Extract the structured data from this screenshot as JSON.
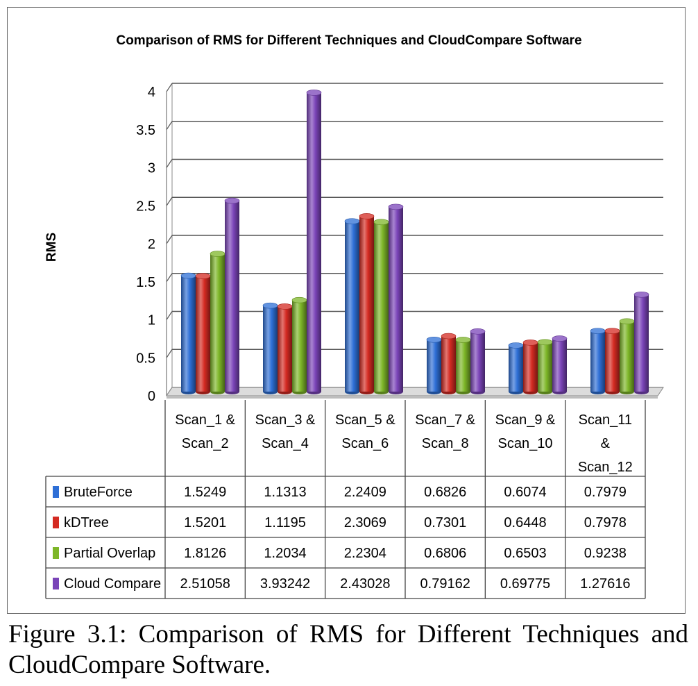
{
  "chart_data": {
    "type": "bar",
    "title": "Comparison of RMS for Different Techniques and CloudCompare Software",
    "xlabel": "",
    "ylabel": "RMS",
    "ylim": [
      0,
      4
    ],
    "yticks": [
      "0",
      "0.5",
      "1",
      "1.5",
      "2",
      "2.5",
      "3",
      "3.5",
      "4"
    ],
    "grid": true,
    "style": "3d-cylinder",
    "categories": [
      [
        "Scan_1 &",
        "Scan_2"
      ],
      [
        "Scan_3 &",
        "Scan_4"
      ],
      [
        "Scan_5 &",
        "Scan_6"
      ],
      [
        "Scan_7 &",
        "Scan_8"
      ],
      [
        "Scan_9 &",
        "Scan_10"
      ],
      [
        "Scan_11",
        "&",
        "Scan_12"
      ]
    ],
    "series": [
      {
        "name": "BruteForce",
        "color": "#2E6FD6",
        "values": [
          1.5249,
          1.1313,
          2.2409,
          0.6826,
          0.6074,
          0.7979
        ],
        "labels": [
          "1.5249",
          "1.1313",
          "2.2409",
          "0.6826",
          "0.6074",
          "0.7979"
        ]
      },
      {
        "name": "kDTree",
        "color": "#D42A22",
        "values": [
          1.5201,
          1.1195,
          2.3069,
          0.7301,
          0.6448,
          0.7978
        ],
        "labels": [
          "1.5201",
          "1.1195",
          "2.3069",
          "0.7301",
          "0.6448",
          "0.7978"
        ]
      },
      {
        "name": "Partial Overlap",
        "color": "#7DB628",
        "values": [
          1.8126,
          1.2034,
          2.2304,
          0.6806,
          0.6503,
          0.9238
        ],
        "labels": [
          "1.8126",
          "1.2034",
          "2.2304",
          "0.6806",
          "0.6503",
          "0.9238"
        ]
      },
      {
        "name": "Cloud Compare",
        "color": "#7A44B8",
        "values": [
          2.51058,
          3.93242,
          2.43028,
          0.79162,
          0.69775,
          1.27616
        ],
        "labels": [
          "2.51058",
          "3.93242",
          "2.43028",
          "0.79162",
          "0.69775",
          "1.27616"
        ]
      }
    ],
    "legend": "table-left"
  },
  "caption": "Figure 3.1: Comparison of RMS for Different Techniques and CloudCompare Software."
}
